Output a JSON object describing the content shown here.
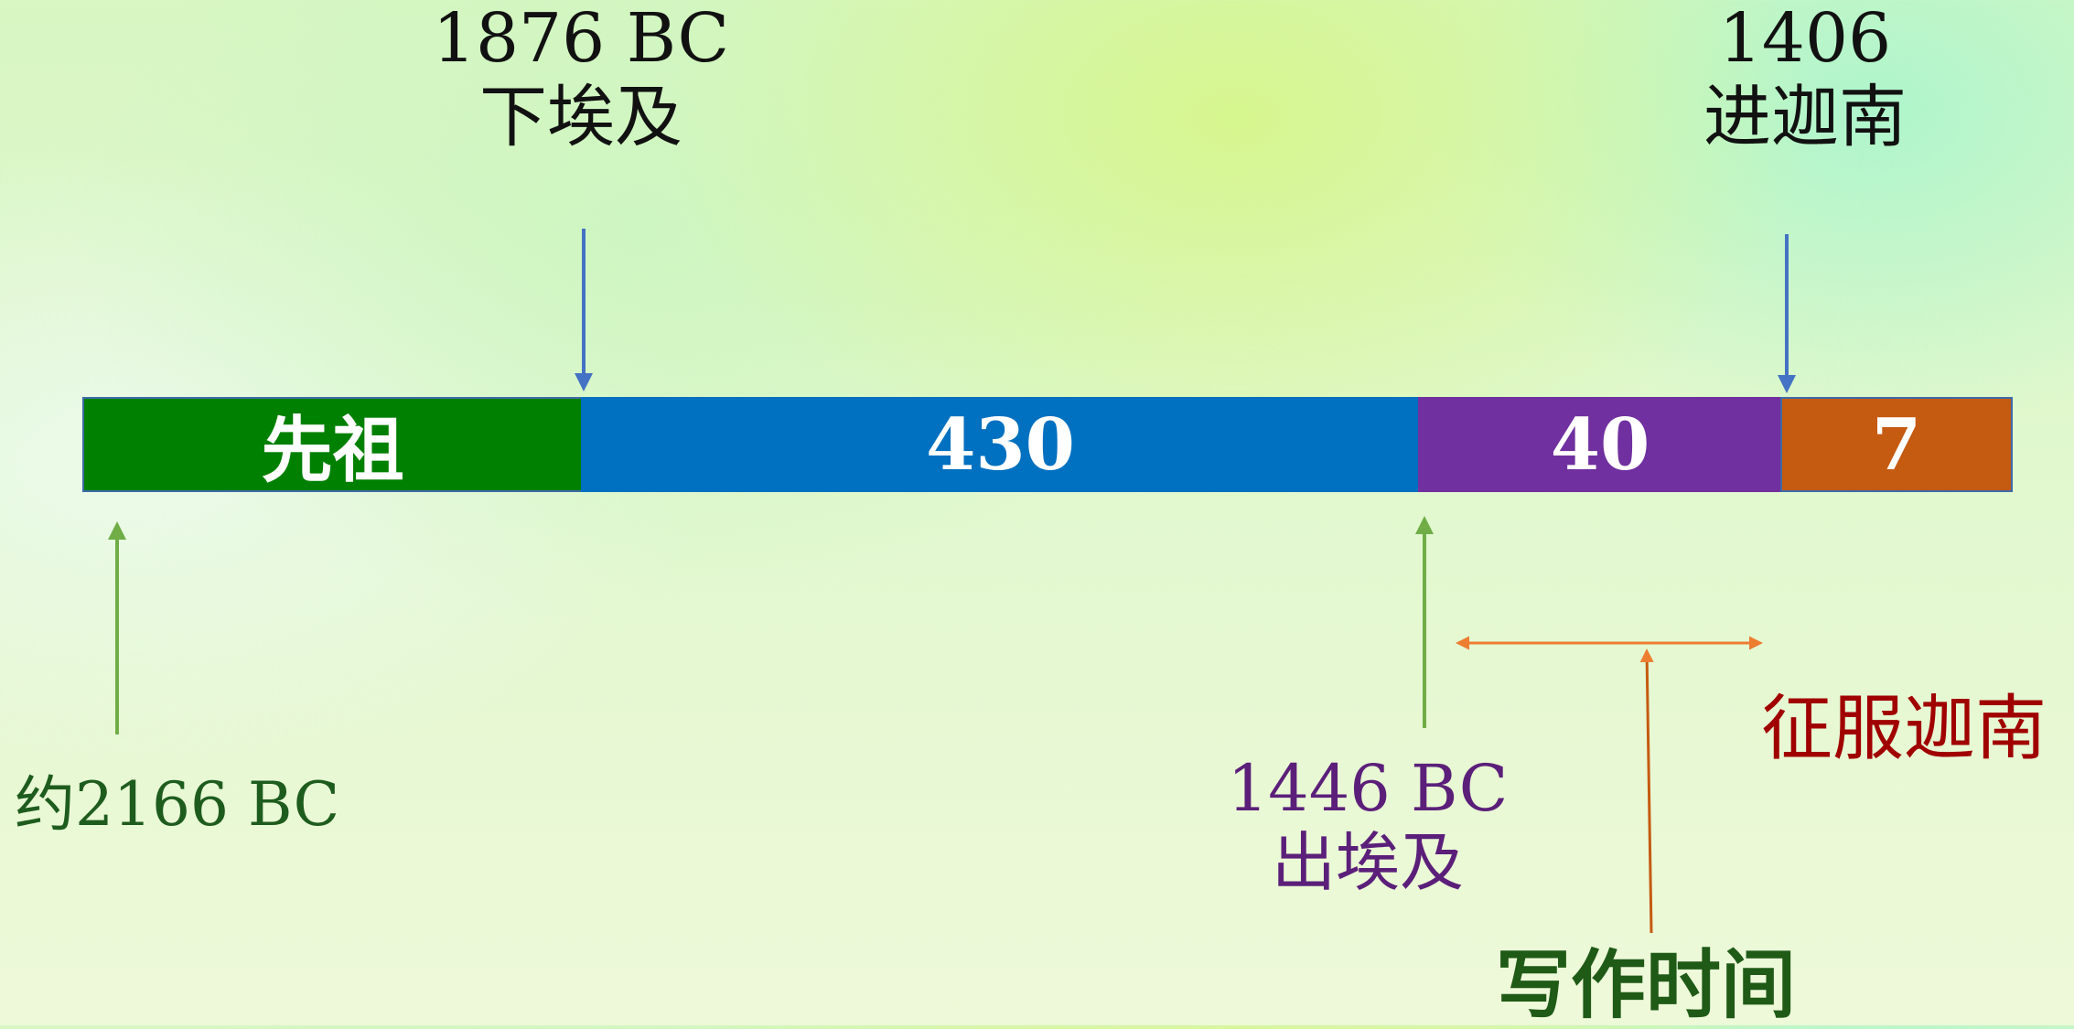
{
  "colors": {
    "ancestors": "#008000",
    "sojourn": "#0070c0",
    "wilderness": "#7030a0",
    "conquest": "#c55a11",
    "descend_arrow": "#4472c4",
    "exodus_arrow": "#70ad47",
    "writing_arrow": "#ed7d31",
    "label_black": "#111111",
    "label_green": "#1e5c1e",
    "label_purple": "#5b1f7a",
    "label_darkred": "#a00000",
    "label_darkgreen": "#1f5a17"
  },
  "segments": [
    {
      "id": "ancestors",
      "label": "先祖"
    },
    {
      "id": "sojourn",
      "label": "430"
    },
    {
      "id": "wilderness",
      "label": "40"
    },
    {
      "id": "conquest",
      "label": "7"
    }
  ],
  "top_labels": {
    "descend": {
      "year": "1876 BC",
      "event": "下埃及"
    },
    "enter": {
      "year": "1406",
      "event": "进迦南"
    }
  },
  "bottom_labels": {
    "start": "约2166 BC",
    "exodus": {
      "year": "1446 BC",
      "event": "出埃及"
    },
    "conquest": "征服迦南",
    "writing": "写作时间"
  }
}
